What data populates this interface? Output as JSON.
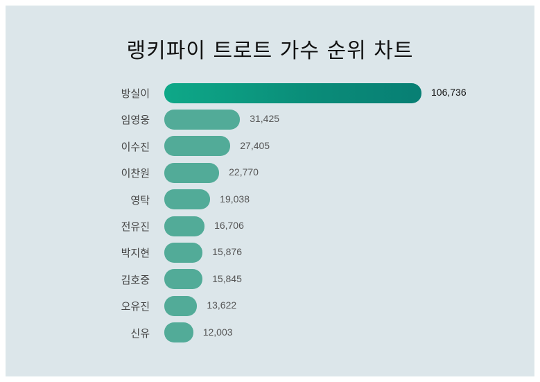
{
  "chart_data": {
    "type": "bar",
    "orientation": "horizontal",
    "title": "랭키파이 트로트 가수 순위 차트",
    "categories": [
      "방실이",
      "임영웅",
      "이수진",
      "이찬원",
      "영탁",
      "전유진",
      "박지현",
      "김호중",
      "오유진",
      "신유"
    ],
    "values": [
      106736,
      31425,
      27405,
      22770,
      19038,
      16706,
      15876,
      15845,
      13622,
      12003
    ],
    "value_labels": [
      "106,736",
      "31,425",
      "27,405",
      "22,770",
      "19,038",
      "16,706",
      "15,876",
      "15,845",
      "13,622",
      "12,003"
    ],
    "colors": {
      "top": "#0a9a82",
      "bar": "#52ab98",
      "background": "#dce6ea"
    },
    "grid": false,
    "legend": "none"
  }
}
